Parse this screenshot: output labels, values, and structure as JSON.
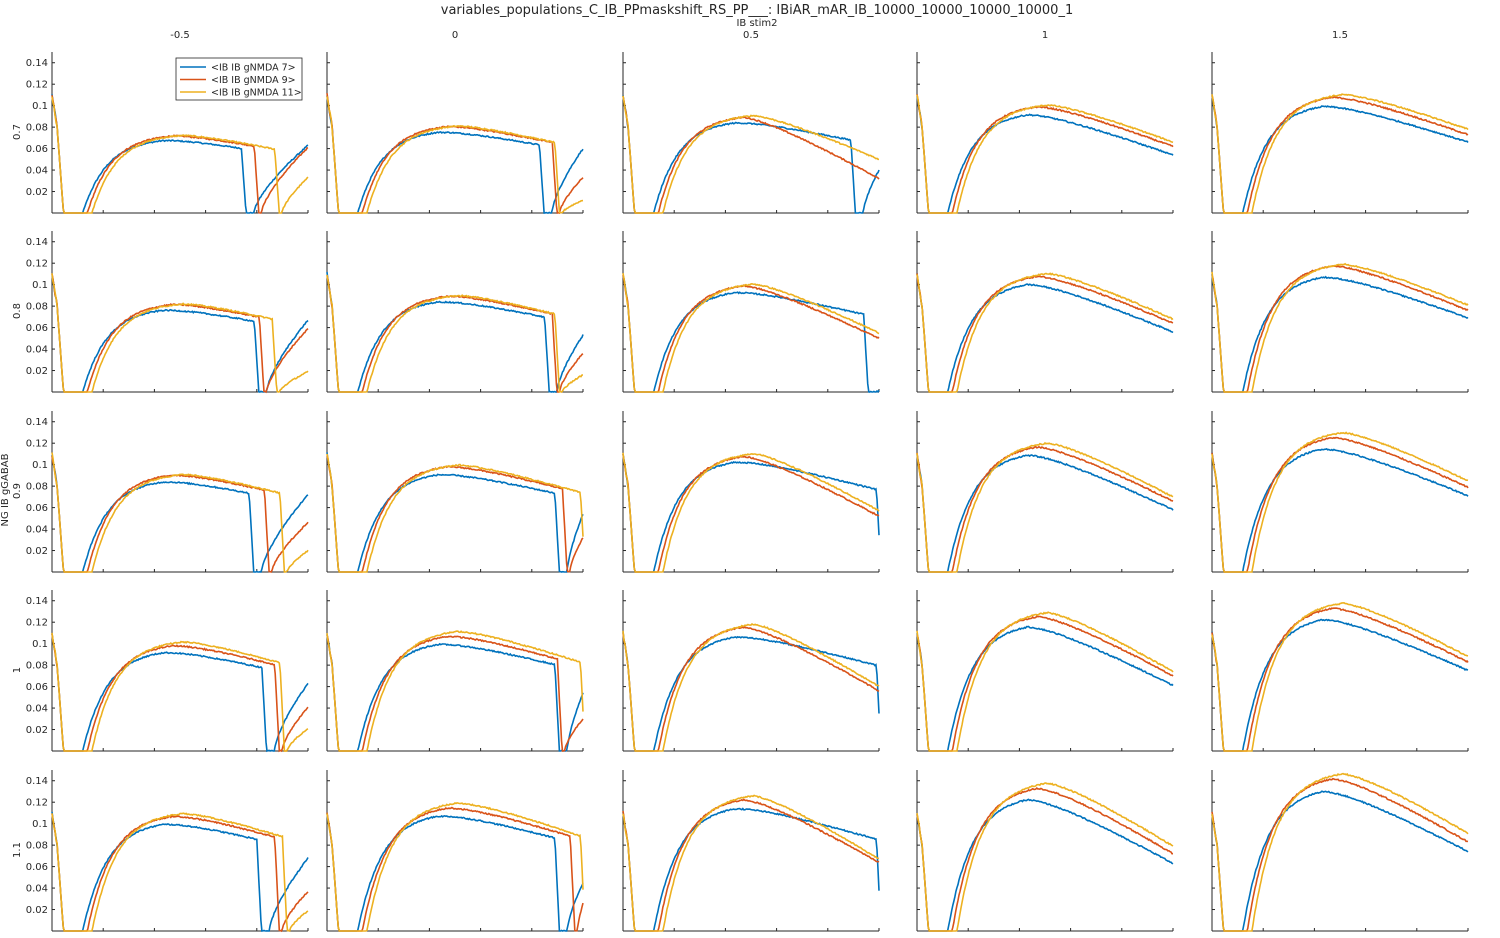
{
  "title": "variables_populations_C_IB_PPmaskshift_RS_PP___: IBiAR_mAR_IB_10000_10000_10000_10000_1",
  "x_group_label": "IB stim2",
  "y_group_label": "NG IB gGABAB",
  "col_labels": [
    "-0.5",
    "0",
    "0.5",
    "1",
    "1.5"
  ],
  "row_labels": [
    "0.7",
    "0.8",
    "0.9",
    "1",
    "1.1"
  ],
  "colors": {
    "series_0": "#0072BD",
    "series_1": "#D95319",
    "series_2": "#EDB120",
    "axis": "#262626"
  },
  "chart_data": {
    "type": "line",
    "layout": "grid 5x5 small multiples",
    "x_tick_labels": [
      "0",
      "200",
      "400",
      "600",
      "800",
      "1000"
    ],
    "y_tick_labels": [
      "0.02",
      "0.04",
      "0.06",
      "0.08",
      "0.1",
      "0.12",
      "0.14"
    ],
    "xlim": [
      0,
      1000
    ],
    "ylim": [
      0,
      0.15
    ],
    "legend": {
      "placement": "top-right of first panel",
      "entries": [
        "<IB IB gNMDA 7>",
        "<IB IB gNMDA 9>",
        "<IB IB gNMDA 11>"
      ]
    },
    "series": [
      {
        "name": "<IB IB gNMDA 7>",
        "color": "#0072BD"
      },
      {
        "name": "<IB IB gNMDA 9>",
        "color": "#D95319"
      },
      {
        "name": "<IB IB gNMDA 11>",
        "color": "#EDB120"
      }
    ],
    "panels": [
      {
        "row": 0,
        "col": 0,
        "peaks": [
          0.07,
          0.074,
          0.074
        ],
        "drops": [
          740,
          790,
          870
        ],
        "end": [
          0.063,
          0.061,
          0.033
        ]
      },
      {
        "row": 0,
        "col": 1,
        "peaks": [
          0.078,
          0.083,
          0.083
        ],
        "drops": [
          830,
          880,
          890
        ],
        "end": [
          0.06,
          0.033,
          0.012
        ]
      },
      {
        "row": 0,
        "col": 2,
        "peaks": [
          0.087,
          0.092,
          0.093
        ],
        "drops": [
          890,
          null,
          null
        ],
        "end": [
          0.04,
          0.0,
          0.05
        ]
      },
      {
        "row": 0,
        "col": 3,
        "peaks": [
          0.095,
          0.102,
          0.103
        ],
        "drops": [
          null,
          null,
          null
        ],
        "end": [
          0.054,
          0.062,
          0.066
        ]
      },
      {
        "row": 0,
        "col": 4,
        "peaks": [
          0.103,
          0.111,
          0.113
        ],
        "drops": [
          null,
          null,
          null
        ],
        "end": [
          0.066,
          0.073,
          0.078
        ]
      },
      {
        "row": 1,
        "col": 0,
        "peaks": [
          0.079,
          0.084,
          0.084
        ],
        "drops": [
          790,
          810,
          860
        ],
        "end": [
          0.067,
          0.059,
          0.019
        ]
      },
      {
        "row": 1,
        "col": 1,
        "peaks": [
          0.087,
          0.092,
          0.092
        ],
        "drops": [
          850,
          880,
          890
        ],
        "end": [
          0.053,
          0.036,
          0.016
        ]
      },
      {
        "row": 1,
        "col": 2,
        "peaks": [
          0.096,
          0.102,
          0.103
        ],
        "drops": [
          940,
          null,
          null
        ],
        "end": [
          0.001,
          0.05,
          0.055
        ]
      },
      {
        "row": 1,
        "col": 3,
        "peaks": [
          0.104,
          0.111,
          0.113
        ],
        "drops": [
          null,
          null,
          null
        ],
        "end": [
          0.056,
          0.064,
          0.068
        ]
      },
      {
        "row": 1,
        "col": 4,
        "peaks": [
          0.111,
          0.121,
          0.122
        ],
        "drops": [
          null,
          null,
          null
        ],
        "end": [
          0.069,
          0.076,
          0.081
        ]
      },
      {
        "row": 2,
        "col": 0,
        "peaks": [
          0.087,
          0.093,
          0.093
        ],
        "drops": [
          770,
          830,
          890
        ],
        "end": [
          0.072,
          0.046,
          0.02
        ]
      },
      {
        "row": 2,
        "col": 1,
        "peaks": [
          0.094,
          0.101,
          0.102
        ],
        "drops": [
          890,
          920,
          990
        ],
        "end": [
          0.054,
          0.032,
          0.05
        ]
      },
      {
        "row": 2,
        "col": 2,
        "peaks": [
          0.106,
          0.111,
          0.113
        ],
        "drops": [
          990,
          null,
          null
        ],
        "end": [
          0.005,
          0.052,
          0.057
        ]
      },
      {
        "row": 2,
        "col": 3,
        "peaks": [
          0.113,
          0.12,
          0.123
        ],
        "drops": [
          null,
          null,
          null
        ],
        "end": [
          0.058,
          0.066,
          0.07
        ]
      },
      {
        "row": 2,
        "col": 4,
        "peaks": [
          0.119,
          0.129,
          0.133
        ],
        "drops": [
          null,
          null,
          null
        ],
        "end": [
          0.071,
          0.079,
          0.085
        ]
      },
      {
        "row": 3,
        "col": 0,
        "peaks": [
          0.095,
          0.101,
          0.104
        ],
        "drops": [
          820,
          870,
          890
        ],
        "end": [
          0.063,
          0.041,
          0.021
        ]
      },
      {
        "row": 3,
        "col": 1,
        "peaks": [
          0.103,
          0.11,
          0.114
        ],
        "drops": [
          890,
          900,
          990
        ],
        "end": [
          0.054,
          0.03,
          0.048
        ]
      },
      {
        "row": 3,
        "col": 2,
        "peaks": [
          0.11,
          0.119,
          0.121
        ],
        "drops": [
          990,
          null,
          null
        ],
        "end": [
          0.004,
          0.056,
          0.06
        ]
      },
      {
        "row": 3,
        "col": 3,
        "peaks": [
          0.12,
          0.129,
          0.132
        ],
        "drops": [
          null,
          null,
          null
        ],
        "end": [
          0.061,
          0.07,
          0.074
        ]
      },
      {
        "row": 3,
        "col": 4,
        "peaks": [
          0.127,
          0.137,
          0.141
        ],
        "drops": [
          null,
          null,
          null
        ],
        "end": [
          0.075,
          0.083,
          0.088
        ]
      },
      {
        "row": 4,
        "col": 0,
        "peaks": [
          0.103,
          0.11,
          0.112
        ],
        "drops": [
          800,
          870,
          900
        ],
        "end": [
          0.068,
          0.037,
          0.019
        ]
      },
      {
        "row": 4,
        "col": 1,
        "peaks": [
          0.111,
          0.118,
          0.122
        ],
        "drops": [
          890,
          950,
          990
        ],
        "end": [
          0.045,
          0.026,
          0.042
        ]
      },
      {
        "row": 4,
        "col": 2,
        "peaks": [
          0.118,
          0.126,
          0.129
        ],
        "drops": [
          990,
          null,
          null
        ],
        "end": [
          0.011,
          0.064,
          0.067
        ]
      },
      {
        "row": 4,
        "col": 3,
        "peaks": [
          0.127,
          0.137,
          0.141
        ],
        "drops": [
          null,
          null,
          null
        ],
        "end": [
          0.063,
          0.072,
          0.079
        ]
      },
      {
        "row": 4,
        "col": 4,
        "peaks": [
          0.135,
          0.146,
          0.15
        ],
        "drops": [
          null,
          null,
          null
        ],
        "end": [
          0.074,
          0.083,
          0.091
        ]
      }
    ]
  }
}
